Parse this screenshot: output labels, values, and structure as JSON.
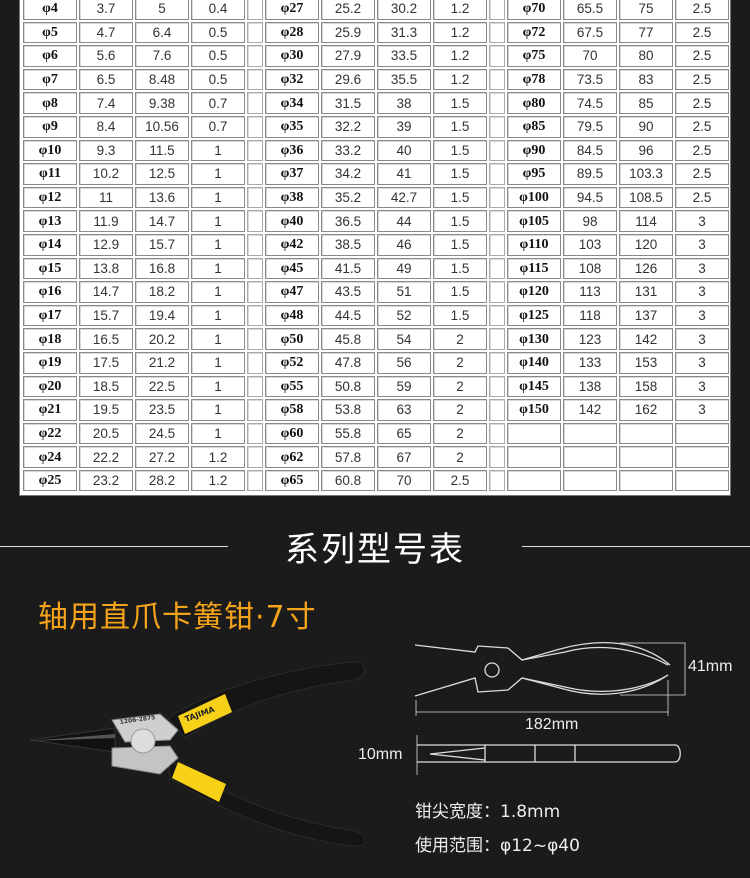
{
  "spec_table": {
    "groups": [
      {
        "rows": [
          [
            "φ4",
            "3.7",
            "5",
            "0.4"
          ],
          [
            "φ5",
            "4.7",
            "6.4",
            "0.5"
          ],
          [
            "φ6",
            "5.6",
            "7.6",
            "0.5"
          ],
          [
            "φ7",
            "6.5",
            "8.48",
            "0.5"
          ],
          [
            "φ8",
            "7.4",
            "9.38",
            "0.7"
          ],
          [
            "φ9",
            "8.4",
            "10.56",
            "0.7"
          ],
          [
            "φ10",
            "9.3",
            "11.5",
            "1"
          ],
          [
            "φ11",
            "10.2",
            "12.5",
            "1"
          ],
          [
            "φ12",
            "11",
            "13.6",
            "1"
          ],
          [
            "φ13",
            "11.9",
            "14.7",
            "1"
          ],
          [
            "φ14",
            "12.9",
            "15.7",
            "1"
          ],
          [
            "φ15",
            "13.8",
            "16.8",
            "1"
          ],
          [
            "φ16",
            "14.7",
            "18.2",
            "1"
          ],
          [
            "φ17",
            "15.7",
            "19.4",
            "1"
          ],
          [
            "φ18",
            "16.5",
            "20.2",
            "1"
          ],
          [
            "φ19",
            "17.5",
            "21.2",
            "1"
          ],
          [
            "φ20",
            "18.5",
            "22.5",
            "1"
          ],
          [
            "φ21",
            "19.5",
            "23.5",
            "1"
          ],
          [
            "φ22",
            "20.5",
            "24.5",
            "1"
          ],
          [
            "φ24",
            "22.2",
            "27.2",
            "1.2"
          ],
          [
            "φ25",
            "23.2",
            "28.2",
            "1.2"
          ]
        ]
      },
      {
        "rows": [
          [
            "φ27",
            "25.2",
            "30.2",
            "1.2"
          ],
          [
            "φ28",
            "25.9",
            "31.3",
            "1.2"
          ],
          [
            "φ30",
            "27.9",
            "33.5",
            "1.2"
          ],
          [
            "φ32",
            "29.6",
            "35.5",
            "1.2"
          ],
          [
            "φ34",
            "31.5",
            "38",
            "1.5"
          ],
          [
            "φ35",
            "32.2",
            "39",
            "1.5"
          ],
          [
            "φ36",
            "33.2",
            "40",
            "1.5"
          ],
          [
            "φ37",
            "34.2",
            "41",
            "1.5"
          ],
          [
            "φ38",
            "35.2",
            "42.7",
            "1.5"
          ],
          [
            "φ40",
            "36.5",
            "44",
            "1.5"
          ],
          [
            "φ42",
            "38.5",
            "46",
            "1.5"
          ],
          [
            "φ45",
            "41.5",
            "49",
            "1.5"
          ],
          [
            "φ47",
            "43.5",
            "51",
            "1.5"
          ],
          [
            "φ48",
            "44.5",
            "52",
            "1.5"
          ],
          [
            "φ50",
            "45.8",
            "54",
            "2"
          ],
          [
            "φ52",
            "47.8",
            "56",
            "2"
          ],
          [
            "φ55",
            "50.8",
            "59",
            "2"
          ],
          [
            "φ58",
            "53.8",
            "63",
            "2"
          ],
          [
            "φ60",
            "55.8",
            "65",
            "2"
          ],
          [
            "φ62",
            "57.8",
            "67",
            "2"
          ],
          [
            "φ65",
            "60.8",
            "70",
            "2.5"
          ]
        ]
      },
      {
        "rows": [
          [
            "φ70",
            "65.5",
            "75",
            "2.5"
          ],
          [
            "φ72",
            "67.5",
            "77",
            "2.5"
          ],
          [
            "φ75",
            "70",
            "80",
            "2.5"
          ],
          [
            "φ78",
            "73.5",
            "83",
            "2.5"
          ],
          [
            "φ80",
            "74.5",
            "85",
            "2.5"
          ],
          [
            "φ85",
            "79.5",
            "90",
            "2.5"
          ],
          [
            "φ90",
            "84.5",
            "96",
            "2.5"
          ],
          [
            "φ95",
            "89.5",
            "103.3",
            "2.5"
          ],
          [
            "φ100",
            "94.5",
            "108.5",
            "2.5"
          ],
          [
            "φ105",
            "98",
            "114",
            "3"
          ],
          [
            "φ110",
            "103",
            "120",
            "3"
          ],
          [
            "φ115",
            "108",
            "126",
            "3"
          ],
          [
            "φ120",
            "113",
            "131",
            "3"
          ],
          [
            "φ125",
            "118",
            "137",
            "3"
          ],
          [
            "φ130",
            "123",
            "142",
            "3"
          ],
          [
            "φ140",
            "133",
            "153",
            "3"
          ],
          [
            "φ145",
            "138",
            "158",
            "3"
          ],
          [
            "φ150",
            "142",
            "162",
            "3"
          ],
          [
            "",
            "",
            "",
            ""
          ],
          [
            "",
            "",
            "",
            ""
          ],
          [
            "",
            "",
            "",
            ""
          ]
        ]
      }
    ]
  },
  "section_title": "系列型号表",
  "product_name": "轴用直爪卡簧钳·7寸",
  "product_image": {
    "brand_text": "TAJIMA",
    "model_text": "1206-2875"
  },
  "diagram": {
    "height_label": "41mm",
    "length_label": "182mm",
    "thickness_label": "10mm"
  },
  "specs": {
    "tip_width": "钳尖宽度：1.8mm",
    "range": "使用范围：φ12~φ40"
  },
  "colors": {
    "background": "#1b1b1b",
    "accent": "#f5a31a",
    "handle_yellow": "#f7d117"
  }
}
